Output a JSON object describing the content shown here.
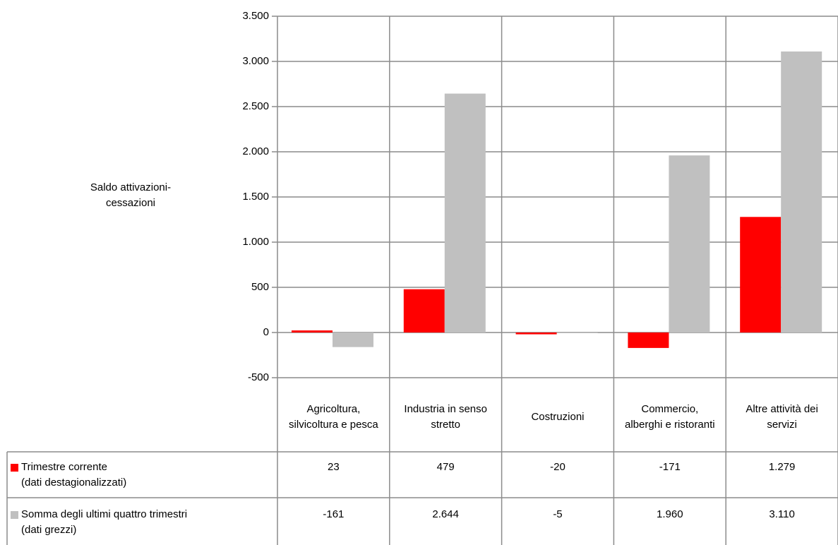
{
  "chart_data": {
    "type": "bar",
    "y_label": "Saldo attivazioni-cessazioni",
    "categories": [
      "Agricoltura, silvicoltura e pesca",
      "Industria in senso stretto",
      "Costruzioni",
      "Commercio, alberghi e ristoranti",
      "Altre attività dei servizi"
    ],
    "series": [
      {
        "name": "Trimestre corrente\n(dati destagionalizzati)",
        "color": "#ff0000",
        "values": [
          23,
          479,
          -20,
          -171,
          1279
        ],
        "value_labels": [
          "23",
          "479",
          "-20",
          "-171",
          "1.279"
        ]
      },
      {
        "name": "Somma degli ultimi quattro trimestri\n(dati grezzi)",
        "color": "#c0c0c0",
        "values": [
          -161,
          2644,
          -5,
          1960,
          3110
        ],
        "value_labels": [
          "-161",
          "2.644",
          "-5",
          "1.960",
          "3.110"
        ]
      }
    ],
    "ylim": [
      -500,
      3500
    ],
    "yticks": [
      -500,
      0,
      500,
      {
        "value": 1000,
        "label": "1.000"
      },
      {
        "value": 1500,
        "label": "1.500"
      },
      {
        "value": 2000,
        "label": "2.000"
      },
      {
        "value": 2500,
        "label": "2.500"
      },
      {
        "value": 3000,
        "label": "3.000"
      },
      {
        "value": 3500,
        "label": "3.500"
      }
    ],
    "grid": true
  }
}
